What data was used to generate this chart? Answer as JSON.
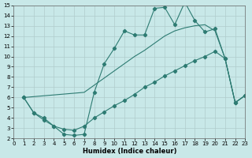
{
  "xlabel": "Humidex (Indice chaleur)",
  "bg_color": "#c8e8e8",
  "line_color": "#2d7b72",
  "grid_color": "#b0cccc",
  "xlim": [
    0,
    23
  ],
  "ylim": [
    2,
    15
  ],
  "xticks": [
    0,
    1,
    2,
    3,
    4,
    5,
    6,
    7,
    8,
    9,
    10,
    11,
    12,
    13,
    14,
    15,
    16,
    17,
    18,
    19,
    20,
    21,
    22,
    23
  ],
  "yticks": [
    2,
    3,
    4,
    5,
    6,
    7,
    8,
    9,
    10,
    11,
    12,
    13,
    14,
    15
  ],
  "curve1_x": [
    1,
    2,
    3,
    4,
    5,
    6,
    7,
    8,
    9,
    10,
    11,
    12,
    13,
    14,
    15,
    16,
    17,
    18,
    19,
    20,
    21,
    22,
    23
  ],
  "curve1_y": [
    6.0,
    4.5,
    4.0,
    3.2,
    2.4,
    2.3,
    2.4,
    6.5,
    9.3,
    10.8,
    12.5,
    12.1,
    12.1,
    14.7,
    14.8,
    13.1,
    15.3,
    13.5,
    12.4,
    12.7,
    9.8,
    5.5,
    6.2
  ],
  "curve2_x": [
    1,
    7,
    8,
    9,
    10,
    11,
    12,
    13,
    14,
    15,
    16,
    17,
    18,
    19,
    20,
    21,
    22,
    23
  ],
  "curve2_y": [
    6.0,
    6.5,
    7.2,
    7.9,
    8.6,
    9.3,
    10.0,
    10.6,
    11.3,
    12.0,
    12.5,
    12.8,
    13.0,
    13.1,
    12.5,
    9.8,
    5.5,
    6.2
  ],
  "curve3_x": [
    1,
    2,
    3,
    4,
    5,
    6,
    7,
    8,
    9,
    10,
    11,
    12,
    13,
    14,
    15,
    16,
    17,
    18,
    19,
    20,
    21,
    22,
    23
  ],
  "curve3_y": [
    6.0,
    4.5,
    3.8,
    3.2,
    2.9,
    2.8,
    3.2,
    4.0,
    4.6,
    5.2,
    5.7,
    6.3,
    7.0,
    7.5,
    8.1,
    8.6,
    9.1,
    9.6,
    10.0,
    10.5,
    9.8,
    5.5,
    6.2
  ]
}
